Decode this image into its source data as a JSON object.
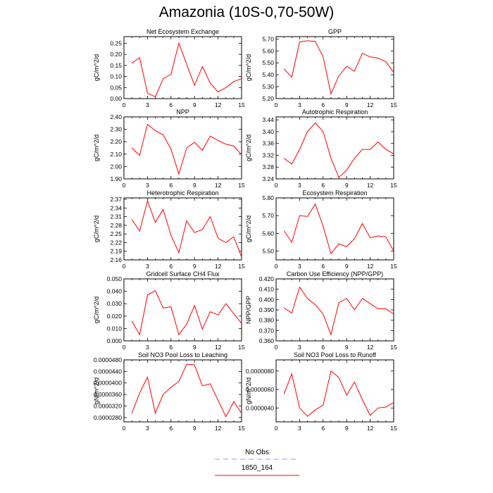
{
  "page": {
    "title": "Amazonia (10S-0,70-50W)"
  },
  "legend": {
    "items": [
      {
        "label": "No Obs",
        "color": "#9a9aff",
        "style": "dashed"
      },
      {
        "label": "1850_164",
        "color": "#ff0000",
        "style": "solid"
      }
    ]
  },
  "chart_data": [
    {
      "type": "line",
      "title": "Net Ecosystem Exchange",
      "xlabel": "",
      "ylabel": "gC/m^2/d",
      "xlim": [
        0,
        15
      ],
      "ylim": [
        0.0,
        0.28
      ],
      "xticks": [
        0,
        3,
        6,
        9,
        12,
        15
      ],
      "yticks": [
        "0.00",
        "0.05",
        "0.10",
        "0.15",
        "0.20",
        "0.25"
      ],
      "ytick_values": [
        0.0,
        0.05,
        0.1,
        0.15,
        0.2,
        0.25
      ],
      "x": [
        1,
        2,
        3,
        4,
        5,
        6,
        7,
        8,
        9,
        10,
        11,
        12,
        13,
        14,
        15
      ],
      "series": [
        {
          "color": "#ff0000",
          "values": [
            0.16,
            0.185,
            0.025,
            0.008,
            0.09,
            0.11,
            0.25,
            0.155,
            0.06,
            0.145,
            0.07,
            0.03,
            0.05,
            0.077,
            0.09
          ]
        }
      ]
    },
    {
      "type": "line",
      "title": "GPP",
      "xlabel": "",
      "ylabel": "gC/m^2/d",
      "xlim": [
        0,
        15
      ],
      "ylim": [
        5.2,
        5.72
      ],
      "xticks": [
        0,
        3,
        6,
        9,
        12,
        15
      ],
      "yticks": [
        "5.20",
        "5.30",
        "5.40",
        "5.50",
        "5.60",
        "5.70"
      ],
      "ytick_values": [
        5.2,
        5.3,
        5.4,
        5.5,
        5.6,
        5.7
      ],
      "x": [
        1,
        2,
        3,
        4,
        5,
        6,
        7,
        8,
        9,
        10,
        11,
        12,
        13,
        14,
        15
      ],
      "series": [
        {
          "color": "#ff0000",
          "values": [
            5.45,
            5.38,
            5.675,
            5.685,
            5.68,
            5.55,
            5.24,
            5.39,
            5.47,
            5.43,
            5.58,
            5.55,
            5.54,
            5.51,
            5.42
          ]
        }
      ]
    },
    {
      "type": "line",
      "title": "NPP",
      "xlabel": "",
      "ylabel": "gC/m^2/d",
      "xlim": [
        0,
        15
      ],
      "ylim": [
        1.9,
        2.4
      ],
      "xticks": [
        0,
        3,
        6,
        9,
        12,
        15
      ],
      "yticks": [
        "1.90",
        "2.00",
        "2.10",
        "2.20",
        "2.30",
        "2.40"
      ],
      "ytick_values": [
        1.9,
        2.0,
        2.1,
        2.2,
        2.3,
        2.4
      ],
      "x": [
        1,
        2,
        3,
        4,
        5,
        6,
        7,
        8,
        9,
        10,
        11,
        12,
        13,
        14,
        15
      ],
      "series": [
        {
          "color": "#ff0000",
          "values": [
            2.15,
            2.09,
            2.34,
            2.29,
            2.255,
            2.14,
            1.94,
            2.15,
            2.195,
            2.13,
            2.245,
            2.21,
            2.18,
            2.165,
            2.095
          ]
        }
      ]
    },
    {
      "type": "line",
      "title": "Autotrophic Respiration",
      "xlabel": "",
      "ylabel": "gC/m^2/d",
      "xlim": [
        0,
        15
      ],
      "ylim": [
        3.24,
        3.45
      ],
      "xticks": [
        0,
        3,
        6,
        9,
        12,
        15
      ],
      "yticks": [
        "3.24",
        "3.28",
        "3.32",
        "3.36",
        "3.40",
        "3.44"
      ],
      "ytick_values": [
        3.24,
        3.28,
        3.32,
        3.36,
        3.4,
        3.44
      ],
      "x": [
        1,
        2,
        3,
        4,
        5,
        6,
        7,
        8,
        9,
        10,
        11,
        12,
        13,
        14,
        15
      ],
      "series": [
        {
          "color": "#ff0000",
          "values": [
            3.31,
            3.29,
            3.34,
            3.4,
            3.43,
            3.4,
            3.31,
            3.245,
            3.27,
            3.31,
            3.34,
            3.34,
            3.365,
            3.34,
            3.325
          ]
        }
      ]
    },
    {
      "type": "line",
      "title": "Heterotrophic Respiration",
      "xlabel": "",
      "ylabel": "gC/m^2/d",
      "xlim": [
        0,
        15
      ],
      "ylim": [
        2.16,
        2.375
      ],
      "xticks": [
        0,
        3,
        6,
        9,
        12,
        15
      ],
      "yticks": [
        "2.16",
        "2.19",
        "2.22",
        "2.25",
        "2.28",
        "2.31",
        "2.34",
        "2.37"
      ],
      "ytick_values": [
        2.16,
        2.19,
        2.22,
        2.25,
        2.28,
        2.31,
        2.34,
        2.37
      ],
      "x": [
        1,
        2,
        3,
        4,
        5,
        6,
        7,
        8,
        9,
        10,
        11,
        12,
        13,
        14,
        15
      ],
      "series": [
        {
          "color": "#ff0000",
          "values": [
            2.3,
            2.26,
            2.365,
            2.29,
            2.335,
            2.245,
            2.185,
            2.295,
            2.255,
            2.265,
            2.31,
            2.235,
            2.22,
            2.24,
            2.17
          ]
        }
      ]
    },
    {
      "type": "line",
      "title": "Ecosystem Respiration",
      "xlabel": "",
      "ylabel": "gC/m^2/d",
      "xlim": [
        0,
        15
      ],
      "ylim": [
        5.45,
        5.8
      ],
      "xticks": [
        0,
        3,
        6,
        9,
        12,
        15
      ],
      "yticks": [
        "5.50",
        "5.60",
        "5.70",
        "5.80"
      ],
      "ytick_values": [
        5.5,
        5.6,
        5.7,
        5.8
      ],
      "x": [
        1,
        2,
        3,
        4,
        5,
        6,
        7,
        8,
        9,
        10,
        11,
        12,
        13,
        14,
        15
      ],
      "series": [
        {
          "color": "#ff0000",
          "values": [
            5.615,
            5.55,
            5.7,
            5.695,
            5.765,
            5.64,
            5.485,
            5.54,
            5.525,
            5.57,
            5.655,
            5.575,
            5.585,
            5.58,
            5.5
          ]
        }
      ]
    },
    {
      "type": "line",
      "title": "Gridcell Surface CH4 Flux",
      "xlabel": "",
      "ylabel": "gC/m^2/d",
      "xlim": [
        0,
        15
      ],
      "ylim": [
        0.0,
        0.05
      ],
      "xticks": [
        0,
        3,
        6,
        9,
        12,
        15
      ],
      "yticks": [
        "0.000",
        "0.010",
        "0.020",
        "0.030",
        "0.040",
        "0.050"
      ],
      "ytick_values": [
        0.0,
        0.01,
        0.02,
        0.03,
        0.04,
        0.05
      ],
      "x": [
        1,
        2,
        3,
        4,
        5,
        6,
        7,
        8,
        9,
        10,
        11,
        12,
        13,
        14,
        15
      ],
      "series": [
        {
          "color": "#ff0000",
          "values": [
            0.016,
            0.005,
            0.037,
            0.0405,
            0.0265,
            0.0275,
            0.005,
            0.0135,
            0.0285,
            0.0095,
            0.0235,
            0.021,
            0.03,
            0.022,
            0.014
          ]
        }
      ]
    },
    {
      "type": "line",
      "title": "Carbon Use Efficiency (NPP/GPP)",
      "xlabel": "",
      "ylabel": "NPP/GPP",
      "xlim": [
        0,
        15
      ],
      "ylim": [
        0.36,
        0.42
      ],
      "xticks": [
        0,
        3,
        6,
        9,
        12,
        15
      ],
      "yticks": [
        "0.360",
        "0.370",
        "0.380",
        "0.390",
        "0.400",
        "0.410",
        "0.420"
      ],
      "ytick_values": [
        0.36,
        0.37,
        0.38,
        0.39,
        0.4,
        0.41,
        0.42
      ],
      "x": [
        1,
        2,
        3,
        4,
        5,
        6,
        7,
        8,
        9,
        10,
        11,
        12,
        13,
        14,
        15
      ],
      "series": [
        {
          "color": "#ff0000",
          "values": [
            0.392,
            0.387,
            0.412,
            0.401,
            0.395,
            0.386,
            0.366,
            0.397,
            0.401,
            0.39,
            0.401,
            0.396,
            0.391,
            0.391,
            0.386
          ]
        }
      ]
    },
    {
      "type": "line",
      "title": "Soil NO3 Pool Loss to Leaching",
      "xlabel": "",
      "ylabel": "gN/m^2/d",
      "xlim": [
        0,
        15
      ],
      "ylim": [
        2.65e-05,
        4.8e-05
      ],
      "xticks": [
        0,
        3,
        6,
        9,
        12,
        15
      ],
      "yticks": [
        "0.0000280",
        "0.0000320",
        "0.0000360",
        "0.0000400",
        "0.0000440",
        "0.0000480"
      ],
      "ytick_values": [
        2.8e-05,
        3.2e-05,
        3.6e-05,
        4e-05,
        4.4e-05,
        4.8e-05
      ],
      "x": [
        1,
        2,
        3,
        4,
        5,
        6,
        7,
        8,
        9,
        10,
        11,
        12,
        13,
        14,
        15
      ],
      "series": [
        {
          "color": "#ff0000",
          "values": [
            2.95e-05,
            3.65e-05,
            4.2e-05,
            2.95e-05,
            3.6e-05,
            3.85e-05,
            4.05e-05,
            4.65e-05,
            4.63e-05,
            3.9e-05,
            3.97e-05,
            3.4e-05,
            2.83e-05,
            3.35e-05,
            2.95e-05
          ]
        }
      ]
    },
    {
      "type": "line",
      "title": "Soil NO3 Pool Loss to Runoff",
      "xlabel": "",
      "ylabel": "gN/m^2/d",
      "xlim": [
        0,
        15
      ],
      "ylim": [
        2.5e-06,
        9.2e-06
      ],
      "xticks": [
        0,
        3,
        6,
        9,
        12,
        15
      ],
      "yticks": [
        "0.0000040",
        "0.0000060",
        "0.0000080"
      ],
      "ytick_values": [
        4e-06,
        6e-06,
        8e-06
      ],
      "x": [
        1,
        2,
        3,
        4,
        5,
        6,
        7,
        8,
        9,
        10,
        11,
        12,
        13,
        14,
        15
      ],
      "series": [
        {
          "color": "#ff0000",
          "values": [
            5.5e-06,
            7.7e-06,
            4e-06,
            3.1e-06,
            3.8e-06,
            4.3e-06,
            8e-06,
            7.3e-06,
            5.4e-06,
            6.8e-06,
            4.9e-06,
            3.2e-06,
            4e-06,
            4.1e-06,
            4.6e-06
          ]
        }
      ]
    }
  ]
}
